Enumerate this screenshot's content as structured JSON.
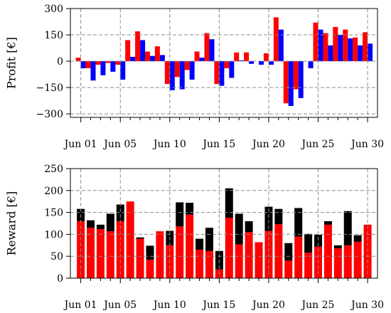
{
  "colors": {
    "red": "#ff0000",
    "blue": "#0000ff",
    "black": "#000000",
    "grid": "#8c8c8c"
  },
  "chart_data": [
    {
      "type": "bar",
      "ylabel": "Profit [€]",
      "ylim": [
        -320,
        300
      ],
      "yticks": [
        -300,
        -150,
        0,
        150,
        300
      ],
      "ytick_labels": [
        "−300",
        "−150",
        "0",
        "150",
        "300"
      ],
      "grid": true,
      "x": [
        1,
        2,
        3,
        4,
        5,
        6,
        7,
        8,
        9,
        10,
        11,
        12,
        13,
        14,
        15,
        16,
        17,
        18,
        19,
        20,
        21,
        22,
        23,
        24,
        25,
        26,
        27,
        28,
        29,
        30
      ],
      "xticks": [
        1,
        5,
        10,
        15,
        20,
        25,
        30
      ],
      "xtick_labels": [
        "Jun 01",
        "Jun 05",
        "Jun 10",
        "Jun 15",
        "Jun 20",
        "Jun 25",
        "Jun 30"
      ],
      "series": [
        {
          "color": "red",
          "values": [
            20,
            -40,
            -20,
            -10,
            -20,
            120,
            170,
            55,
            85,
            -130,
            -90,
            -50,
            55,
            160,
            -130,
            -40,
            50,
            50,
            0,
            45,
            250,
            -240,
            -160,
            0,
            220,
            160,
            195,
            180,
            135,
            165
          ]
        },
        {
          "color": "blue",
          "values": [
            -40,
            -110,
            -80,
            -60,
            -105,
            25,
            120,
            30,
            35,
            -165,
            -160,
            -105,
            20,
            125,
            -140,
            -95,
            5,
            -15,
            -20,
            -20,
            180,
            -255,
            -210,
            -40,
            180,
            90,
            150,
            130,
            90,
            100
          ]
        }
      ]
    },
    {
      "type": "bar",
      "stacked": true,
      "ylabel": "Reward [€]",
      "ylim": [
        0,
        250
      ],
      "yticks": [
        0,
        50,
        100,
        150,
        200,
        250
      ],
      "ytick_labels": [
        "0",
        "50",
        "100",
        "150",
        "200",
        "250"
      ],
      "grid": true,
      "x": [
        1,
        2,
        3,
        4,
        5,
        6,
        7,
        8,
        9,
        10,
        11,
        12,
        13,
        14,
        15,
        16,
        17,
        18,
        19,
        20,
        21,
        22,
        23,
        24,
        25,
        26,
        27,
        28,
        29,
        30
      ],
      "xticks": [
        1,
        5,
        10,
        15,
        20,
        25,
        30
      ],
      "xtick_labels": [
        "Jun 01",
        "Jun 05",
        "Jun 10",
        "Jun 15",
        "Jun 20",
        "Jun 25",
        "Jun 30"
      ],
      "series": [
        {
          "color": "red",
          "values": [
            130,
            115,
            112,
            107,
            130,
            175,
            90,
            42,
            107,
            75,
            118,
            145,
            65,
            62,
            20,
            138,
            77,
            105,
            82,
            108,
            123,
            40,
            95,
            58,
            72,
            122,
            68,
            75,
            83,
            122
          ]
        },
        {
          "color": "black",
          "values": [
            28,
            17,
            10,
            40,
            38,
            0,
            3,
            32,
            0,
            33,
            55,
            27,
            25,
            53,
            42,
            67,
            70,
            25,
            0,
            55,
            35,
            40,
            65,
            43,
            27,
            8,
            7,
            78,
            15,
            0
          ]
        }
      ]
    }
  ]
}
